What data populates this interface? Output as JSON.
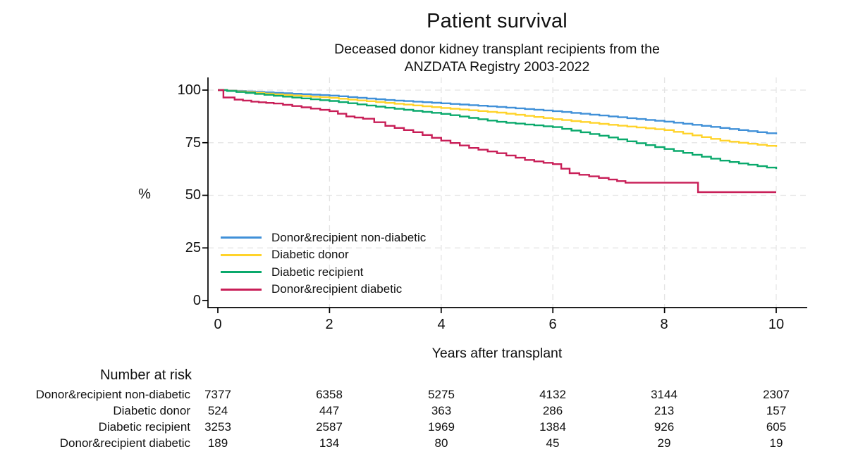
{
  "title": "Patient survival",
  "subtitle_line1": "Deceased donor kidney transplant recipients from the",
  "subtitle_line2": "ANZDATA Registry 2003-2022",
  "chart_data": {
    "type": "line",
    "subtype": "kaplan-meier-step-curves",
    "title": "Patient survival",
    "subtitle": "Deceased donor kidney transplant recipients from the ANZDATA Registry 2003-2022",
    "xlabel": "Years after transplant",
    "ylabel": "%",
    "xlim": [
      0,
      10
    ],
    "ylim": [
      0,
      100
    ],
    "x_ticks": [
      0,
      2,
      4,
      6,
      8,
      10
    ],
    "y_ticks": [
      100,
      75,
      50,
      25,
      0
    ],
    "grid": "light dashed gridlines at every x and y tick",
    "legend_position": "inside lower-left",
    "axis_color": "#000000",
    "grid_color": "#e4e4e4",
    "series": [
      {
        "name": "Donor&recipient non-diabetic",
        "color": "#4090d8",
        "x": [
          0,
          1,
          2,
          3,
          4,
          5,
          6,
          7,
          8,
          9,
          10
        ],
        "y": [
          100,
          98.7,
          97.4,
          95.3,
          93.7,
          92.0,
          90.0,
          87.5,
          85.0,
          82.0,
          79.0
        ]
      },
      {
        "name": "Diabetic donor",
        "color": "#ffd32a",
        "x": [
          0,
          1,
          2,
          3,
          4,
          5,
          6,
          7,
          8,
          9,
          10
        ],
        "y": [
          100,
          98.0,
          96.3,
          93.9,
          91.5,
          89.3,
          86.2,
          83.5,
          81.0,
          76.0,
          73.0
        ]
      },
      {
        "name": "Diabetic recipient",
        "color": "#0aa96c",
        "x": [
          0,
          1,
          2,
          3,
          4,
          5,
          6,
          7,
          8,
          9,
          10
        ],
        "y": [
          100,
          97.3,
          94.8,
          91.6,
          88.7,
          84.9,
          82.4,
          77.5,
          72.0,
          66.5,
          62.5
        ]
      },
      {
        "name": "Donor&recipient diabetic",
        "color": "#c81e57",
        "x": [
          0,
          0.1,
          0.3,
          0.6,
          1,
          1.5,
          2,
          2.3,
          2.6,
          3,
          3.5,
          4,
          4.5,
          5,
          5.5,
          6,
          6.3,
          7,
          7.3,
          8.5,
          8.6,
          10
        ],
        "y": [
          100,
          96.5,
          95.5,
          94.5,
          93.6,
          91.8,
          90.0,
          87.5,
          86.4,
          83.0,
          80.0,
          76.0,
          72.5,
          70.0,
          66.8,
          64.8,
          60.5,
          57.5,
          56.0,
          56.0,
          51.5,
          51.5
        ]
      }
    ]
  },
  "risk_table": {
    "header": "Number at risk",
    "time_points": [
      0,
      2,
      4,
      6,
      8,
      10
    ],
    "rows": [
      {
        "label": "Donor&recipient non-diabetic",
        "values": [
          7377,
          6358,
          5275,
          4132,
          3144,
          2307
        ]
      },
      {
        "label": "Diabetic donor",
        "values": [
          524,
          447,
          363,
          286,
          213,
          157
        ]
      },
      {
        "label": "Diabetic recipient",
        "values": [
          3253,
          2587,
          1969,
          1384,
          926,
          605
        ]
      },
      {
        "label": "Donor&recipient diabetic",
        "values": [
          189,
          134,
          80,
          45,
          29,
          19
        ]
      }
    ]
  }
}
